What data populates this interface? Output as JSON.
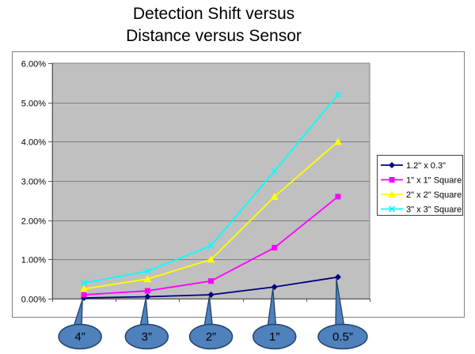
{
  "title": {
    "line1": "Detection Shift versus",
    "line2": "Distance versus Sensor"
  },
  "chart_data": {
    "type": "line",
    "title": "Detection Shift versus Distance versus Sensor",
    "categories": [
      "4”",
      "3”",
      "2”",
      "1”",
      "0.5”"
    ],
    "series": [
      {
        "name": "1.2\" x 0.3\"",
        "color": "#000080",
        "marker": "diamond",
        "values": [
          0.02,
          0.05,
          0.1,
          0.3,
          0.55
        ]
      },
      {
        "name": "1\" x 1\" Square",
        "color": "#FF00FF",
        "marker": "square",
        "values": [
          0.1,
          0.2,
          0.45,
          1.3,
          2.6
        ]
      },
      {
        "name": "2\" x 2\" Square",
        "color": "#FFFF00",
        "marker": "triangle",
        "values": [
          0.25,
          0.5,
          1.0,
          2.6,
          4.0
        ]
      },
      {
        "name": "3\" x 3\" Square",
        "color": "#00FFFF",
        "marker": "x",
        "values": [
          0.4,
          0.7,
          1.35,
          3.25,
          5.2
        ]
      }
    ],
    "y_axis": {
      "min": 0,
      "max": 6,
      "step": 1,
      "unit": "percent",
      "tick_labels": [
        "0.00%",
        "1.00%",
        "2.00%",
        "3.00%",
        "4.00%",
        "5.00%",
        "6.00%"
      ]
    },
    "grid": true,
    "legend_position": "right",
    "plot_background": "#C0C0C0",
    "gridline_color": "#808080",
    "axis_color": "#595959",
    "callout": {
      "fill": "#4F81BD",
      "stroke": "#24436B",
      "text_color": "#000000"
    }
  }
}
